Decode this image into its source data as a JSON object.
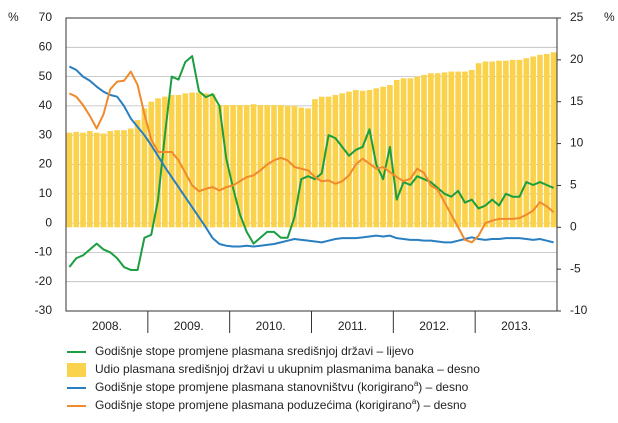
{
  "chart_data": {
    "type": "combo",
    "left_unit": "%",
    "right_unit": "%",
    "categories": [
      null,
      null,
      null,
      null,
      null,
      null,
      "2008.",
      null,
      null,
      null,
      null,
      null,
      null,
      null,
      null,
      null,
      null,
      null,
      "2009.",
      null,
      null,
      null,
      null,
      null,
      null,
      null,
      null,
      null,
      null,
      null,
      "2010.",
      null,
      null,
      null,
      null,
      null,
      null,
      null,
      null,
      null,
      null,
      null,
      "2011.",
      null,
      null,
      null,
      null,
      null,
      null,
      null,
      null,
      null,
      null,
      null,
      "2012.",
      null,
      null,
      null,
      null,
      null,
      null,
      null,
      null,
      null,
      null,
      null,
      "2013.",
      null,
      null,
      null,
      null,
      null
    ],
    "ylim": [
      -30,
      70
    ],
    "yticks": [
      -30,
      -20,
      -10,
      0,
      10,
      20,
      30,
      40,
      50,
      60,
      70
    ],
    "y2lim": [
      -10,
      25
    ],
    "y2ticks": [
      -10,
      -5,
      0,
      5,
      10,
      15,
      20,
      25
    ],
    "grid": true,
    "series": [
      {
        "name": "Godišnje stope promjene plasmana središnjoj državi – lijevo",
        "type": "line",
        "axis": "y",
        "color": "#1a9e3f",
        "values": [
          -15,
          -12,
          -11,
          -9,
          -7,
          -9,
          -10,
          -12,
          -15,
          -16,
          -16,
          -5,
          -4,
          8,
          30,
          50,
          49,
          55,
          57,
          45,
          43,
          44,
          40,
          22,
          12,
          3,
          -3,
          -7,
          -5,
          -3,
          -3,
          -5,
          -5,
          2,
          15,
          16,
          15,
          17,
          30,
          29,
          26,
          23,
          25,
          26,
          32,
          20,
          15,
          26,
          8,
          14,
          13,
          16,
          15,
          14,
          12,
          10,
          9,
          11,
          7,
          8,
          5,
          6,
          8,
          6,
          10,
          9,
          9,
          14,
          13,
          14,
          13,
          12
        ]
      },
      {
        "name": "Udio plasmana središnjoj državi u ukupnim plasmanima banaka – desno",
        "type": "bar",
        "axis": "y2",
        "color": "#fbd24c",
        "values": [
          11.3,
          11.4,
          11.3,
          11.5,
          11.3,
          11.2,
          11.5,
          11.6,
          11.6,
          11.8,
          12.8,
          14.2,
          15.0,
          15.4,
          15.6,
          15.8,
          15.8,
          16.0,
          16.1,
          16.1,
          16.0,
          15.9,
          14.6,
          14.6,
          14.6,
          14.6,
          14.6,
          14.7,
          14.6,
          14.6,
          14.6,
          14.6,
          14.5,
          14.5,
          14.3,
          14.2,
          15.3,
          15.6,
          15.6,
          15.8,
          16.0,
          16.2,
          16.4,
          16.3,
          16.4,
          16.6,
          16.8,
          17.0,
          17.6,
          17.8,
          17.8,
          18.0,
          18.2,
          18.4,
          18.4,
          18.5,
          18.6,
          18.6,
          18.6,
          18.8,
          19.6,
          19.8,
          19.8,
          19.9,
          19.9,
          20.0,
          20.0,
          20.2,
          20.4,
          20.6,
          20.7,
          20.9
        ]
      },
      {
        "name": "Godišnje stope promjene plasmana stanovništvu (korigirano",
        "name_sup": "a",
        "name_tail": ") – desno",
        "type": "line",
        "axis": "y2",
        "color": "#2a7fc0",
        "values": [
          19.2,
          18.8,
          18.0,
          17.5,
          16.8,
          16.2,
          15.8,
          15.6,
          14.5,
          13.0,
          12.0,
          11.0,
          9.8,
          8.5,
          7.2,
          6.0,
          4.8,
          3.6,
          2.4,
          1.2,
          0.0,
          -1.3,
          -2.0,
          -2.2,
          -2.3,
          -2.3,
          -2.2,
          -2.3,
          -2.2,
          -2.1,
          -2.0,
          -1.8,
          -1.6,
          -1.4,
          -1.5,
          -1.6,
          -1.7,
          -1.8,
          -1.6,
          -1.4,
          -1.3,
          -1.3,
          -1.3,
          -1.2,
          -1.1,
          -1.0,
          -1.1,
          -1.0,
          -1.3,
          -1.4,
          -1.5,
          -1.5,
          -1.6,
          -1.6,
          -1.7,
          -1.8,
          -1.8,
          -1.6,
          -1.4,
          -1.2,
          -1.4,
          -1.5,
          -1.4,
          -1.4,
          -1.3,
          -1.3,
          -1.3,
          -1.4,
          -1.5,
          -1.4,
          -1.6,
          -1.8
        ]
      },
      {
        "name": "Godišnje stope promjene plasmana poduzećima (korigirano",
        "name_sup": "a",
        "name_tail": ") – desno",
        "type": "line",
        "axis": "y2",
        "color": "#f08a2c",
        "values": [
          16.0,
          15.6,
          14.6,
          13.3,
          11.8,
          13.5,
          16.5,
          17.4,
          17.5,
          18.6,
          17.0,
          13.5,
          10.5,
          9.0,
          9.0,
          9.0,
          8.0,
          6.5,
          5.0,
          4.3,
          4.6,
          4.8,
          4.4,
          4.8,
          5.0,
          5.5,
          6.0,
          6.2,
          6.8,
          7.5,
          8.0,
          8.3,
          8.0,
          7.2,
          7.0,
          6.8,
          6.0,
          5.5,
          5.6,
          5.2,
          5.5,
          6.2,
          7.5,
          8.2,
          7.6,
          7.0,
          7.2,
          6.6,
          6.0,
          5.5,
          5.8,
          7.0,
          6.5,
          5.0,
          4.5,
          3.0,
          1.5,
          0.0,
          -1.5,
          -1.8,
          -1.0,
          0.5,
          0.8,
          1.0,
          1.0,
          1.0,
          1.1,
          1.5,
          2.0,
          3.0,
          2.5,
          1.8
        ]
      }
    ]
  }
}
